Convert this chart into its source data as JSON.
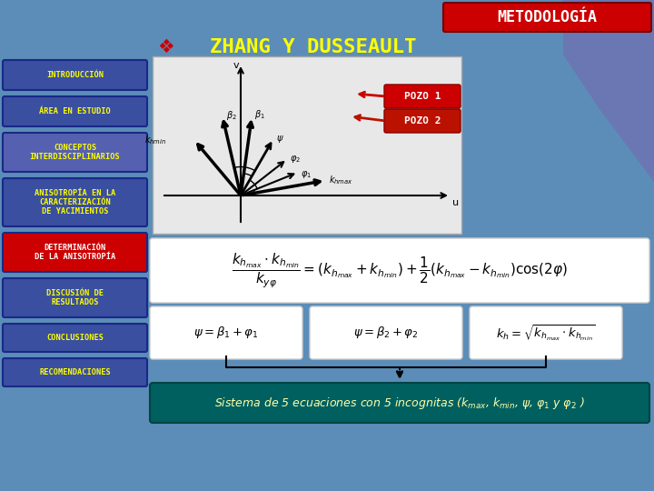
{
  "bg_color": "#5b8db8",
  "purple_shape": "#7070b0",
  "title_bar_color": "#cc0000",
  "title_text": "METODOLOGÍA",
  "title_text_color": "#ffffff",
  "subtitle_text": "ZHANG Y DUSSEAULT",
  "subtitle_text_color": "#ffff00",
  "subtitle_diamond_color": "#cc0000",
  "nav_items": [
    {
      "text": "INTRODUCCIÓN",
      "bg": "#3a4fa0",
      "fg": "#ffff00",
      "lines": 1
    },
    {
      "text": "ÁREA EN ESTUDIO",
      "bg": "#3a4fa0",
      "fg": "#ffff00",
      "lines": 1
    },
    {
      "text": "CONCEPTOS\nINTERDISCIPLINARIOS",
      "bg": "#5560b0",
      "fg": "#ffff00",
      "lines": 2
    },
    {
      "text": "ANISOTROPÍA EN LA\nCARACTERIZACIÓN\nDE YACIMIENTOS",
      "bg": "#3a4fa0",
      "fg": "#ffff00",
      "lines": 3
    },
    {
      "text": "DETERMINACIÓN\nDE LA ANISOTROPÍA",
      "bg": "#cc0000",
      "fg": "#ffffff",
      "lines": 2
    },
    {
      "text": "DISCUSIÓN DE\nRESULTADOS",
      "bg": "#3a4fa0",
      "fg": "#ffff00",
      "lines": 2
    },
    {
      "text": "CONCLUSIONES",
      "bg": "#3a4fa0",
      "fg": "#ffff00",
      "lines": 1
    },
    {
      "text": "RECOMENDACIONES",
      "bg": "#3a4fa0",
      "fg": "#ffff00",
      "lines": 1
    }
  ],
  "diagram_bg": "#e8e8e8",
  "pozo1_color": "#cc0000",
  "pozo2_color": "#bb1100",
  "formula_bg": "#ffffff",
  "formula_border": "#cccccc",
  "bottom_box_bg": "#006060",
  "bottom_box_border": "#004444",
  "bottom_text_color": "#ffffaa"
}
